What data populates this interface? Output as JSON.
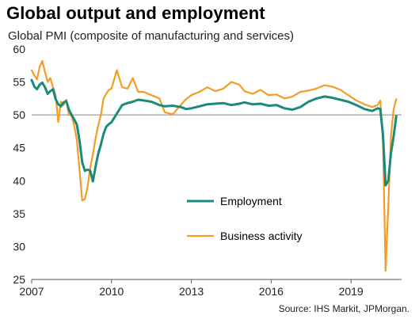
{
  "title": "Global output and employment",
  "subtitle": "Global PMI (composite of manufacturing and services)",
  "source": "Source: IHS Markit, JPMorgan.",
  "colors": {
    "employment": "#1a8a7a",
    "business": "#f39c26",
    "refline": "#888888",
    "axis": "#555555"
  },
  "chart_data": {
    "type": "line",
    "title": "Global output and employment",
    "ylabel": "Global PMI (composite of manufacturing and services)",
    "ylim": [
      25,
      60
    ],
    "yticks": [
      25,
      30,
      35,
      40,
      45,
      50,
      55,
      60
    ],
    "xlim": [
      2007.0,
      2020.9
    ],
    "xticks": [
      2007,
      2010,
      2013,
      2016,
      2019
    ],
    "reference_line": 50,
    "legend": {
      "placement": "center-inside",
      "entries": [
        "Employment",
        "Business activity"
      ]
    },
    "series": [
      {
        "name": "Employment",
        "x": [
          2007.0,
          2007.1,
          2007.2,
          2007.3,
          2007.4,
          2007.5,
          2007.6,
          2007.7,
          2007.8,
          2007.9,
          2008.0,
          2008.1,
          2008.2,
          2008.3,
          2008.4,
          2008.5,
          2008.6,
          2008.7,
          2008.8,
          2008.9,
          2009.0,
          2009.1,
          2009.2,
          2009.3,
          2009.4,
          2009.5,
          2009.6,
          2009.7,
          2009.8,
          2009.9,
          2010.0,
          2010.2,
          2010.4,
          2010.6,
          2010.8,
          2011.0,
          2011.2,
          2011.5,
          2011.8,
          2012.0,
          2012.3,
          2012.6,
          2012.8,
          2013.0,
          2013.3,
          2013.6,
          2013.9,
          2014.2,
          2014.5,
          2014.8,
          2015.0,
          2015.3,
          2015.6,
          2015.9,
          2016.2,
          2016.5,
          2016.8,
          2017.1,
          2017.4,
          2017.7,
          2018.0,
          2018.3,
          2018.6,
          2018.9,
          2019.2,
          2019.5,
          2019.8,
          2020.0,
          2020.1,
          2020.2,
          2020.3,
          2020.4,
          2020.5,
          2020.6,
          2020.7
        ],
        "values": [
          55.3,
          54.3,
          53.9,
          54.6,
          54.9,
          54.2,
          53.2,
          53.6,
          53.9,
          52.4,
          51.6,
          51.3,
          51.9,
          52.1,
          50.8,
          50.0,
          49.3,
          48.5,
          46.0,
          42.8,
          41.5,
          41.7,
          41.5,
          39.9,
          42.1,
          44.1,
          45.5,
          47.1,
          48.2,
          48.6,
          48.9,
          50.2,
          51.5,
          51.8,
          52.0,
          52.3,
          52.2,
          52.0,
          51.5,
          51.3,
          51.4,
          51.2,
          50.9,
          51.0,
          51.3,
          51.6,
          51.7,
          51.8,
          51.5,
          51.7,
          51.9,
          51.6,
          51.7,
          51.4,
          51.5,
          51.0,
          50.8,
          51.2,
          52.0,
          52.5,
          52.8,
          52.6,
          52.3,
          52.0,
          51.5,
          50.9,
          50.6,
          51.0,
          50.9,
          47.0,
          39.3,
          40.0,
          44.2,
          46.7,
          49.8
        ]
      },
      {
        "name": "Business activity",
        "x": [
          2007.0,
          2007.1,
          2007.2,
          2007.3,
          2007.4,
          2007.5,
          2007.6,
          2007.7,
          2007.8,
          2007.9,
          2008.0,
          2008.1,
          2008.2,
          2008.3,
          2008.4,
          2008.5,
          2008.6,
          2008.7,
          2008.8,
          2008.9,
          2009.0,
          2009.1,
          2009.2,
          2009.3,
          2009.4,
          2009.5,
          2009.6,
          2009.7,
          2009.8,
          2009.9,
          2010.0,
          2010.2,
          2010.4,
          2010.6,
          2010.8,
          2011.0,
          2011.2,
          2011.5,
          2011.8,
          2012.0,
          2012.3,
          2012.6,
          2012.8,
          2013.0,
          2013.3,
          2013.6,
          2013.9,
          2014.2,
          2014.5,
          2014.8,
          2015.0,
          2015.3,
          2015.6,
          2015.9,
          2016.2,
          2016.5,
          2016.8,
          2017.1,
          2017.4,
          2017.7,
          2018.0,
          2018.3,
          2018.6,
          2018.9,
          2019.2,
          2019.5,
          2019.8,
          2020.0,
          2020.1,
          2020.2,
          2020.3,
          2020.4,
          2020.5,
          2020.6,
          2020.7
        ],
        "values": [
          56.8,
          56.0,
          55.4,
          57.3,
          58.2,
          56.5,
          55.0,
          55.6,
          54.2,
          53.0,
          48.9,
          52.0,
          51.5,
          52.3,
          50.0,
          49.9,
          48.3,
          46.1,
          41.5,
          37.0,
          37.2,
          39.1,
          42.0,
          44.0,
          46.4,
          48.4,
          50.0,
          52.5,
          53.2,
          53.8,
          54.0,
          56.8,
          54.2,
          54.0,
          55.6,
          53.5,
          53.5,
          53.0,
          52.5,
          50.4,
          50.1,
          51.5,
          52.4,
          53.0,
          53.5,
          54.2,
          53.6,
          54.0,
          55.0,
          54.6,
          53.6,
          53.2,
          53.8,
          53.0,
          53.1,
          52.5,
          52.8,
          53.5,
          53.7,
          54.0,
          54.5,
          54.3,
          53.8,
          53.0,
          52.2,
          51.6,
          51.2,
          51.5,
          52.2,
          46.0,
          26.3,
          36.0,
          46.8,
          50.8,
          52.4
        ]
      }
    ]
  }
}
